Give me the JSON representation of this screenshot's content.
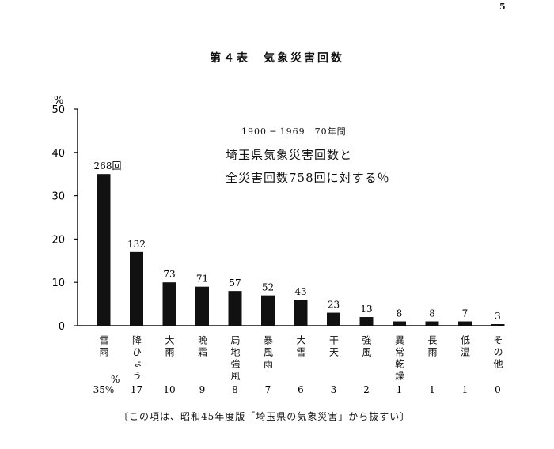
{
  "page_number": "5",
  "title": "第４表　気象災害回数",
  "chart_data": {
    "type": "bar",
    "y_unit": "%",
    "ylim": [
      0,
      50
    ],
    "yticks": [
      0,
      10,
      20,
      30,
      40,
      50
    ],
    "annotation_lines": [
      "1900 ─ 1969　70年間",
      "埼玉県気象災害回数と",
      "全災害回数758回に対する％"
    ],
    "categories": [
      "雷雨",
      "降ひょう",
      "大雨",
      "晩霜",
      "局地強風",
      "暴風雨",
      "大雪",
      "干天",
      "強風",
      "異常乾燥",
      "長雨",
      "低温",
      "その他"
    ],
    "values": [
      35,
      17,
      10,
      9,
      8,
      7,
      6,
      3,
      2,
      1,
      1,
      1,
      0
    ],
    "counts": [
      "268回",
      "132",
      "73",
      "71",
      "57",
      "52",
      "43",
      "23",
      "13",
      "8",
      "8",
      "7",
      "3"
    ],
    "percent_labels": [
      "35%",
      "17",
      "10",
      "9",
      "8",
      "7",
      "6",
      "3",
      "2",
      "1",
      "1",
      "1",
      "0"
    ],
    "bar_color": "#111111"
  },
  "footnote": "〔この項は、昭和45年度版「埼玉県の気象災害」から抜すい〕"
}
